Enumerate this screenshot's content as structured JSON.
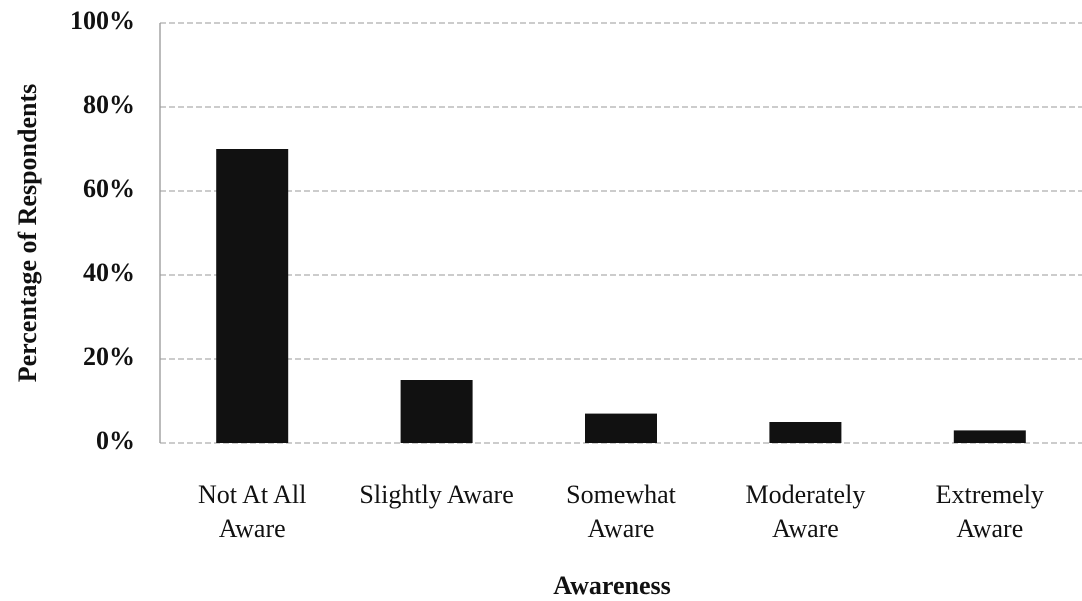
{
  "chart_data": {
    "type": "bar",
    "x_label": "Awareness",
    "y_label": "Percentage of Respondents",
    "categories": [
      "Not At All Aware",
      "Slightly Aware",
      "Somewhat Aware",
      "Moderately Aware",
      "Extremely Aware"
    ],
    "values": [
      70,
      15,
      7,
      5,
      3
    ],
    "color": "#111111",
    "ylim": [
      0,
      100
    ],
    "yticks": [
      {
        "value": 0,
        "label": "0%"
      },
      {
        "value": 20,
        "label": "20%"
      },
      {
        "value": 40,
        "label": "40%"
      },
      {
        "value": 60,
        "label": "60%"
      },
      {
        "value": 80,
        "label": "80%"
      },
      {
        "value": 100,
        "label": "100%"
      }
    ],
    "grid": true
  }
}
